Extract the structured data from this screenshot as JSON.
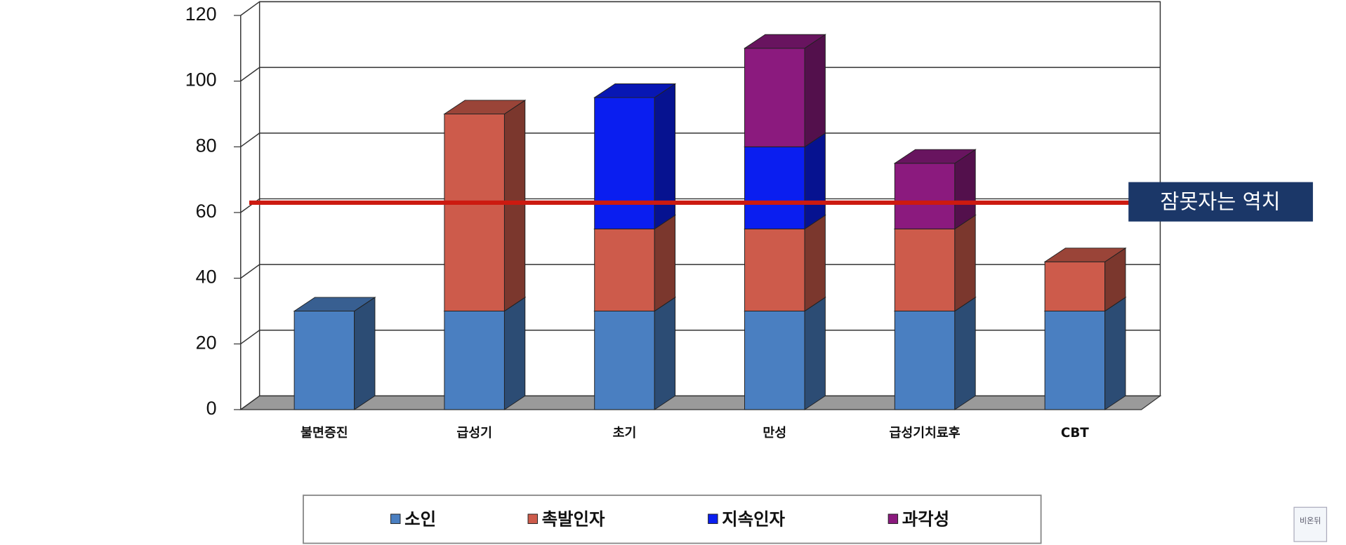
{
  "chart_data": {
    "type": "bar3d-stacked",
    "categories": [
      "불면증진",
      "급성기",
      "초기",
      "만성",
      "급성기치료후",
      "CBT"
    ],
    "series": [
      {
        "name": "소인",
        "color": "#4a7fc1",
        "values": [
          30,
          30,
          30,
          30,
          30,
          30
        ]
      },
      {
        "name": "촉발인자",
        "color": "#cd5b4b",
        "values": [
          0,
          60,
          25,
          25,
          25,
          15
        ]
      },
      {
        "name": "지속인자",
        "color": "#0a1ef0",
        "values": [
          0,
          0,
          40,
          25,
          0,
          0
        ]
      },
      {
        "name": "과각성",
        "color": "#8b1a7e",
        "values": [
          0,
          0,
          0,
          30,
          20,
          0
        ]
      }
    ],
    "ylim": [
      0,
      120
    ],
    "yticks": [
      0,
      20,
      40,
      60,
      80,
      100,
      120
    ],
    "grid": true,
    "threshold": {
      "value": 63,
      "label": "잠못자는 역치",
      "color": "#cc1a10"
    }
  },
  "watermark": "비온뒤"
}
